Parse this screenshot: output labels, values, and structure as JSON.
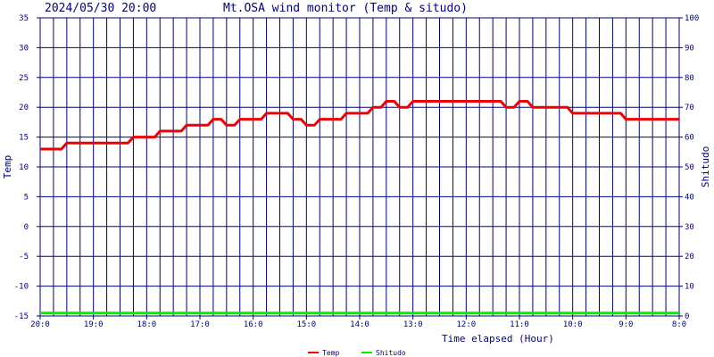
{
  "header": {
    "timestamp": "2024/05/30 20:00",
    "title": "Mt.OSA wind monitor (Temp & situdo)"
  },
  "chart_data": {
    "type": "line",
    "title": "Mt.OSA wind monitor (Temp & situdo)",
    "xlabel": "Time elapsed (Hour)",
    "ylabel": "Temp",
    "y2label": "Shitudo",
    "x": [
      0,
      0.5,
      1,
      1.5,
      2,
      2.5,
      3,
      3.5,
      4,
      4.5,
      5,
      5.5,
      6,
      6.5,
      7,
      7.5,
      8,
      8.5,
      9,
      9.5,
      10,
      10.5,
      11,
      11.5,
      12,
      12.5,
      13,
      13.5,
      14,
      14.5,
      15,
      15.5,
      16,
      16.5,
      17,
      17.5,
      18,
      18.5,
      19,
      19.5,
      20,
      20.5,
      21,
      21.5,
      22,
      22.5,
      23,
      23.5,
      24
    ],
    "x_ticks": [
      "20:0",
      "19:0",
      "18:0",
      "17:0",
      "16:0",
      "15:0",
      "14:0",
      "13:0",
      "12:0",
      "11:0",
      "10:0",
      "9:0",
      "8:0"
    ],
    "x_range": [
      0,
      24
    ],
    "y_ticks": [
      35,
      30,
      25,
      20,
      15,
      10,
      5,
      0,
      -5,
      -10,
      -15
    ],
    "y2_ticks": [
      100,
      90,
      80,
      70,
      60,
      50,
      40,
      30,
      20,
      10,
      0
    ],
    "ylim": [
      -15,
      35
    ],
    "y2lim": [
      0,
      100
    ],
    "grid": true,
    "legend_placement": "bottom",
    "series": [
      {
        "name": "Temp",
        "axis": "left",
        "color": "#ee0000",
        "values": [
          13,
          13,
          14,
          14,
          14,
          14,
          14,
          15,
          15,
          16,
          16,
          17,
          17,
          18,
          17,
          18,
          18,
          19,
          19,
          18,
          17,
          18,
          18,
          19,
          19,
          20,
          21,
          20,
          21,
          21,
          21,
          21,
          21,
          21,
          21,
          20,
          21,
          20,
          20,
          20,
          19,
          19,
          19,
          19,
          18,
          18,
          18,
          18,
          18
        ]
      },
      {
        "name": "Shitudo",
        "axis": "right",
        "color": "#00ee00",
        "values": [
          1,
          1,
          1,
          1,
          1,
          1,
          1,
          1,
          1,
          1,
          1,
          1,
          1,
          1,
          1,
          1,
          1,
          1,
          1,
          1,
          1,
          1,
          1,
          1,
          1,
          1,
          1,
          1,
          1,
          1,
          1,
          1,
          1,
          1,
          1,
          1,
          1,
          1,
          1,
          1,
          1,
          1,
          1,
          1,
          1,
          1,
          1,
          1,
          1
        ]
      }
    ]
  }
}
